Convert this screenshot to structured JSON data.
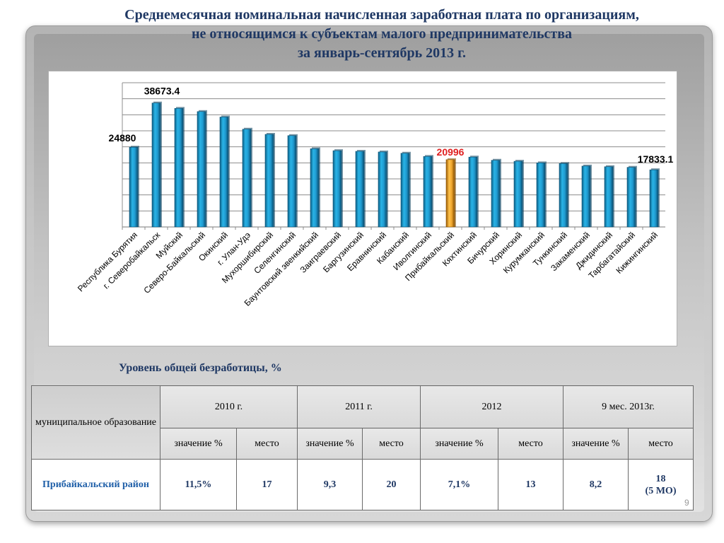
{
  "title": {
    "line1": "Среднемесячная номинальная начисленная заработная плата по организациям,",
    "line2": "не относящимся к субъектам малого предпринимательства",
    "line3": "за январь-сентябрь 2013 г."
  },
  "colors": {
    "title": "#1f3864",
    "bar": "#1f9bd1",
    "bar_highlight": "#f0a830",
    "highlight_label": "#e02020"
  },
  "chart_data": {
    "type": "bar",
    "title": "Среднемесячная номинальная начисленная заработная плата по организациям, не относящимся к субъектам малого предпринимательства за январь-сентябрь 2013 г.",
    "categories": [
      "Республика Бурятия",
      "г. Северобайкальск",
      "Муйский",
      "Северо-Байкальский",
      "Окинский",
      "г. Улан-Удэ",
      "Мухоршибирский",
      "Селенгинский",
      "Баунтовский эвенкийский",
      "Заиграевский",
      "Баргузинский",
      "Еравнинский",
      "Кабанский",
      "Иволгинский",
      "Прибайкальский",
      "Кяхтинский",
      "Бичурский",
      "Хоринский",
      "Курумканский",
      "Тункинский",
      "Закаменский",
      "Джидинский",
      "Тарбагатайский",
      "Кижингинский"
    ],
    "values": [
      24880,
      38673.4,
      37000,
      36000,
      34300,
      30500,
      28900,
      28500,
      24400,
      23800,
      23600,
      23400,
      23000,
      22000,
      20996,
      21800,
      20800,
      20500,
      20000,
      19800,
      19000,
      18800,
      18600,
      17833.1
    ],
    "highlight_index": 14,
    "data_labels": [
      {
        "index": 0,
        "text": "24880"
      },
      {
        "index": 1,
        "text": "38673.4"
      },
      {
        "index": 14,
        "text": "20996"
      },
      {
        "index": 23,
        "text": "17833.1"
      }
    ],
    "xlabel": "",
    "ylabel": "",
    "ylim": [
      0,
      45000
    ],
    "grid": true,
    "legend": "none"
  },
  "unemployment": {
    "subtitle": "Уровень общей безработицы, %",
    "corner_header": "муниципальное образование",
    "years": [
      "2010 г.",
      "2011 г.",
      "2012",
      "9 мес. 2013г."
    ],
    "sub_headers": [
      "значение %",
      "место",
      "значение %",
      "место",
      "значение %",
      "место",
      "значение %",
      "место"
    ],
    "row": {
      "name": "Прибайкальский район",
      "values": [
        "11,5%",
        "17",
        "9,3",
        "20",
        "7,1%",
        "13",
        "8,2"
      ],
      "last_place": "18",
      "last_place_note": "(5 МО)"
    }
  },
  "page_number": "9"
}
